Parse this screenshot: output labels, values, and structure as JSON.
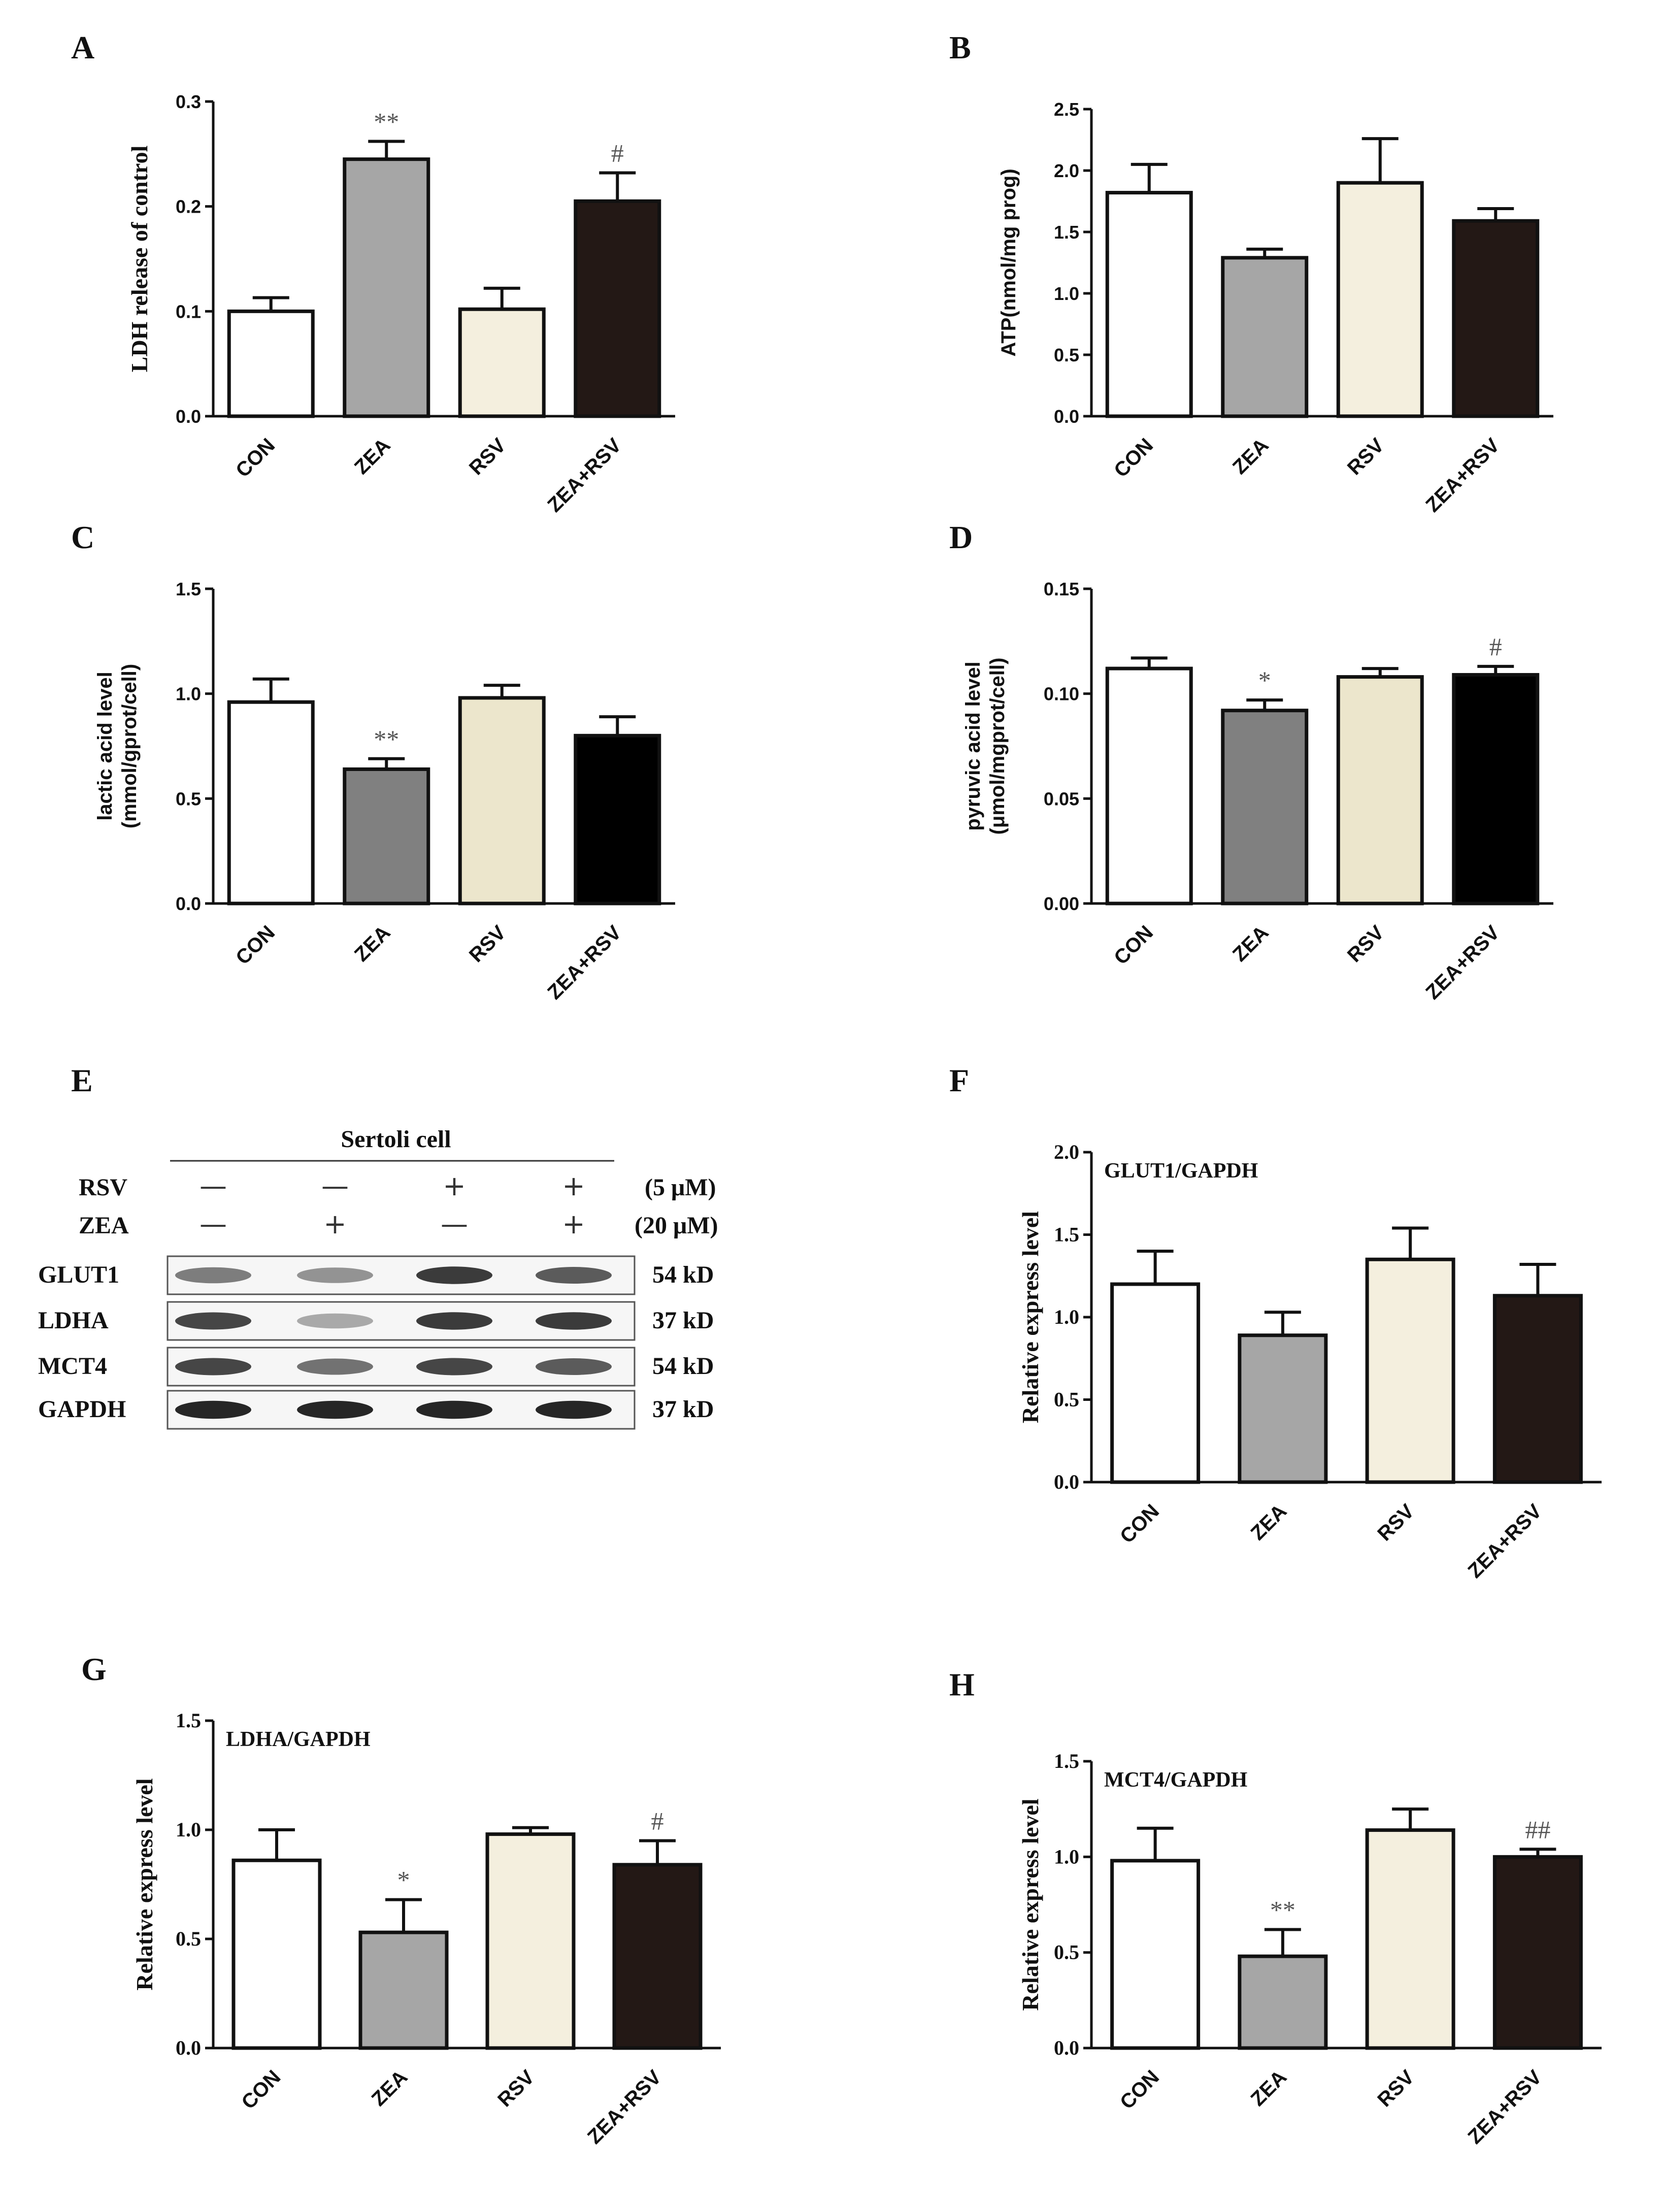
{
  "panel_labels": {
    "A": "A",
    "B": "B",
    "C": "C",
    "D": "D",
    "E": "E",
    "F": "F",
    "G": "G",
    "H": "H"
  },
  "chart_data": [
    {
      "id": "A",
      "type": "bar",
      "title": "",
      "categories": [
        "CON",
        "ZEA",
        "RSV",
        "ZEA+RSV"
      ],
      "values": [
        0.1,
        0.245,
        0.102,
        0.205
      ],
      "errors": [
        0.013,
        0.017,
        0.02,
        0.027
      ],
      "annotations": [
        "",
        "**",
        "",
        "#"
      ],
      "colors": [
        "#ffffff",
        "#a6a6a6",
        "#f4efde",
        "#231815"
      ],
      "xlabel": "",
      "ylabel": "LDH release of control",
      "ylim": [
        0,
        0.3
      ],
      "yticks": [
        "0.0",
        "0.1",
        "0.2",
        "0.3"
      ]
    },
    {
      "id": "B",
      "type": "bar",
      "title": "",
      "categories": [
        "CON",
        "ZEA",
        "RSV",
        "ZEA+RSV"
      ],
      "values": [
        1.82,
        1.29,
        1.9,
        1.59
      ],
      "errors": [
        0.23,
        0.07,
        0.36,
        0.1
      ],
      "annotations": [
        "",
        "",
        "",
        ""
      ],
      "colors": [
        "#ffffff",
        "#a6a6a6",
        "#f4efde",
        "#231815"
      ],
      "xlabel": "",
      "ylabel": "ATP(nmol/mg prog)",
      "ylim": [
        0,
        2.5
      ],
      "yticks": [
        "0.0",
        "0.5",
        "1.0",
        "1.5",
        "2.0",
        "2.5"
      ]
    },
    {
      "id": "C",
      "type": "bar",
      "title": "",
      "categories": [
        "CON",
        "ZEA",
        "RSV",
        "ZEA+RSV"
      ],
      "values": [
        0.96,
        0.64,
        0.98,
        0.8
      ],
      "errors": [
        0.11,
        0.05,
        0.06,
        0.09
      ],
      "annotations": [
        "",
        "**",
        "",
        ""
      ],
      "colors": [
        "#ffffff",
        "#808080",
        "#ece6cc",
        "#000000"
      ],
      "xlabel": "",
      "ylabel": [
        "lactic acid level",
        "(mmol/gprot/cell)"
      ],
      "ylim": [
        0,
        1.5
      ],
      "yticks": [
        "0.0",
        "0.5",
        "1.0",
        "1.5"
      ]
    },
    {
      "id": "D",
      "type": "bar",
      "title": "",
      "categories": [
        "CON",
        "ZEA",
        "RSV",
        "ZEA+RSV"
      ],
      "values": [
        0.112,
        0.092,
        0.108,
        0.109
      ],
      "errors": [
        0.005,
        0.005,
        0.004,
        0.004
      ],
      "annotations": [
        "",
        "*",
        "",
        "#"
      ],
      "colors": [
        "#ffffff",
        "#808080",
        "#ece6cc",
        "#000000"
      ],
      "xlabel": "",
      "ylabel": [
        "pyruvic acid level",
        "(μmol/mgprot/cell)"
      ],
      "ylim": [
        0,
        0.15
      ],
      "yticks": [
        "0.00",
        "0.05",
        "0.10",
        "0.15"
      ]
    },
    {
      "id": "F",
      "type": "bar",
      "title": "GLUT1/GAPDH",
      "categories": [
        "CON",
        "ZEA",
        "RSV",
        "ZEA+RSV"
      ],
      "values": [
        1.2,
        0.89,
        1.35,
        1.13
      ],
      "errors": [
        0.2,
        0.14,
        0.19,
        0.19
      ],
      "annotations": [
        "",
        "",
        "",
        ""
      ],
      "colors": [
        "#ffffff",
        "#a6a6a6",
        "#f4efde",
        "#231815"
      ],
      "xlabel": "",
      "ylabel": "Relative express level",
      "ylim": [
        0,
        2.0
      ],
      "yticks": [
        "0.0",
        "0.5",
        "1.0",
        "1.5",
        "2.0"
      ]
    },
    {
      "id": "G",
      "type": "bar",
      "title": "LDHA/GAPDH",
      "categories": [
        "CON",
        "ZEA",
        "RSV",
        "ZEA+RSV"
      ],
      "values": [
        0.86,
        0.53,
        0.98,
        0.84
      ],
      "errors": [
        0.14,
        0.15,
        0.03,
        0.11
      ],
      "annotations": [
        "",
        "*",
        "",
        "#"
      ],
      "colors": [
        "#ffffff",
        "#a6a6a6",
        "#f4efde",
        "#231815"
      ],
      "xlabel": "",
      "ylabel": "Relative express level",
      "ylim": [
        0,
        1.5
      ],
      "yticks": [
        "0.0",
        "0.5",
        "1.0",
        "1.5"
      ]
    },
    {
      "id": "H",
      "type": "bar",
      "title": "MCT4/GAPDH",
      "categories": [
        "CON",
        "ZEA",
        "RSV",
        "ZEA+RSV"
      ],
      "values": [
        0.98,
        0.48,
        1.14,
        1.0
      ],
      "errors": [
        0.17,
        0.14,
        0.11,
        0.04
      ],
      "annotations": [
        "",
        "**",
        "",
        "##"
      ],
      "colors": [
        "#ffffff",
        "#a6a6a6",
        "#f4efde",
        "#231815"
      ],
      "xlabel": "",
      "ylabel": "Relative express level",
      "ylim": [
        0,
        1.5
      ],
      "yticks": [
        "0.0",
        "0.5",
        "1.0",
        "1.5"
      ]
    }
  ],
  "western_blot": {
    "title": "Sertoli cell",
    "treatments": [
      {
        "name": "RSV",
        "signs": [
          "—",
          "—",
          "+",
          "+"
        ],
        "dose": "(5 μM)"
      },
      {
        "name": "ZEA",
        "signs": [
          "—",
          "+",
          "—",
          "+"
        ],
        "dose": "(20 μM)"
      }
    ],
    "bands": [
      {
        "name": "GLUT1",
        "size": "54 kD",
        "intensity": [
          0.55,
          0.45,
          0.85,
          0.7
        ]
      },
      {
        "name": "LDHA",
        "size": "37 kD",
        "intensity": [
          0.8,
          0.35,
          0.85,
          0.85
        ]
      },
      {
        "name": "MCT4",
        "size": "54 kD",
        "intensity": [
          0.8,
          0.6,
          0.8,
          0.7
        ]
      },
      {
        "name": "GAPDH",
        "size": "37 kD",
        "intensity": [
          0.95,
          0.95,
          0.95,
          0.95
        ]
      }
    ]
  }
}
